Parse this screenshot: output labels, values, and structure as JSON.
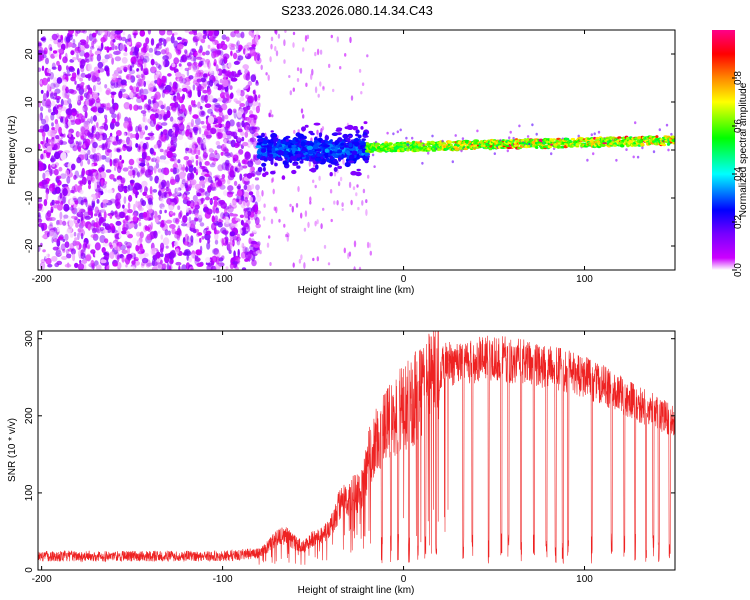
{
  "title": "S233.2026.080.14.34.C43",
  "colors": {
    "snr_line": "#ee2222",
    "colormap": [
      "#ffffff",
      "#cc00ff",
      "#7700ff",
      "#0000ff",
      "#00ffff",
      "#00ff00",
      "#ffff00",
      "#ff8800",
      "#ff0000",
      "#ff00aa"
    ]
  },
  "chart_data": [
    {
      "type": "heatmap",
      "title": "",
      "xlabel": "Height of straight line (km)",
      "ylabel": "Frequency (Hz)",
      "xlim": [
        -202,
        150
      ],
      "ylim": [
        -25,
        25
      ],
      "xticks": [
        -200,
        -100,
        0,
        100
      ],
      "yticks": [
        -20,
        -10,
        0,
        10,
        20
      ],
      "colorbar": {
        "label": "Normalized spectral amplitude",
        "range": [
          0.0,
          1.0
        ],
        "ticks": [
          0.0,
          0.2,
          0.4,
          0.6,
          0.8
        ]
      },
      "regions": [
        {
          "name": "noise",
          "x": [
            -202,
            -80
          ],
          "freq": [
            -25,
            25
          ],
          "amplitude": [
            0.0,
            0.15
          ]
        },
        {
          "name": "onset",
          "x": [
            -80,
            -20
          ],
          "freq": [
            -6,
            6
          ],
          "amplitude": [
            0.1,
            0.35
          ]
        },
        {
          "name": "tone",
          "x": [
            -20,
            150
          ],
          "center_freq": [
            0.5,
            2.0
          ],
          "amplitude": [
            0.5,
            1.0
          ]
        }
      ]
    },
    {
      "type": "line",
      "title": "",
      "xlabel": "Height of straight line (km)",
      "ylabel": "SNR (10 * v/v)",
      "xlim": [
        -202,
        150
      ],
      "ylim": [
        0,
        310
      ],
      "xticks": [
        -200,
        -100,
        0,
        100
      ],
      "yticks": [
        0,
        100,
        200,
        300
      ],
      "series": [
        {
          "name": "SNR",
          "envelope": {
            "x": [
              -202,
              -150,
              -100,
              -80,
              -75,
              -70,
              -65,
              -60,
              -55,
              -50,
              -45,
              -40,
              -35,
              -30,
              -25,
              -22,
              -20,
              -15,
              -10,
              -5,
              0,
              5,
              10,
              15,
              20,
              25,
              30,
              40,
              50,
              60,
              70,
              80,
              90,
              100,
              110,
              120,
              130,
              140,
              150
            ],
            "y": [
              18,
              18,
              18,
              22,
              30,
              42,
              45,
              35,
              30,
              42,
              45,
              58,
              85,
              95,
              100,
              110,
              140,
              170,
              185,
              200,
              210,
              220,
              235,
              250,
              260,
              268,
              270,
              272,
              275,
              272,
              268,
              262,
              258,
              250,
              240,
              228,
              215,
              205,
              190
            ]
          },
          "dropouts_x": [
            -12,
            -7,
            -3,
            3,
            8,
            12,
            18,
            33,
            38,
            47,
            54,
            58,
            65,
            72,
            79,
            84,
            88,
            91,
            104,
            115,
            122,
            128,
            134,
            138,
            141,
            147
          ]
        }
      ]
    }
  ]
}
